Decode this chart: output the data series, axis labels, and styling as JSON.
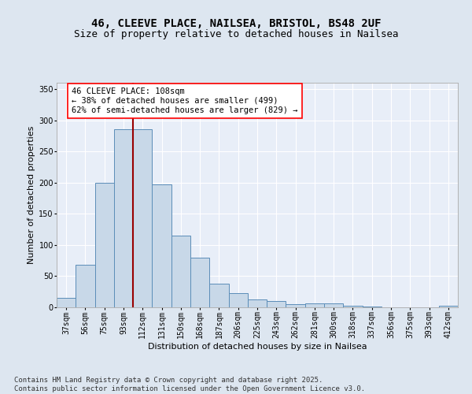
{
  "title_line1": "46, CLEEVE PLACE, NAILSEA, BRISTOL, BS48 2UF",
  "title_line2": "Size of property relative to detached houses in Nailsea",
  "xlabel": "Distribution of detached houses by size in Nailsea",
  "ylabel": "Number of detached properties",
  "categories": [
    "37sqm",
    "56sqm",
    "75sqm",
    "93sqm",
    "112sqm",
    "131sqm",
    "150sqm",
    "168sqm",
    "187sqm",
    "206sqm",
    "225sqm",
    "243sqm",
    "262sqm",
    "281sqm",
    "300sqm",
    "318sqm",
    "337sqm",
    "356sqm",
    "375sqm",
    "393sqm",
    "412sqm"
  ],
  "values": [
    15,
    68,
    200,
    285,
    285,
    197,
    115,
    80,
    38,
    23,
    13,
    10,
    5,
    6,
    6,
    3,
    1,
    0,
    0,
    0,
    2
  ],
  "bar_color": "#c8d8e8",
  "bar_edge_color": "#5b8db8",
  "vline_x_index": 4,
  "vline_color": "#990000",
  "annotation_text": "46 CLEEVE PLACE: 108sqm\n← 38% of detached houses are smaller (499)\n62% of semi-detached houses are larger (829) →",
  "annotation_box_color": "white",
  "annotation_box_edge_color": "red",
  "ylim": [
    0,
    360
  ],
  "yticks": [
    0,
    50,
    100,
    150,
    200,
    250,
    300,
    350
  ],
  "footer_text": "Contains HM Land Registry data © Crown copyright and database right 2025.\nContains public sector information licensed under the Open Government Licence v3.0.",
  "bg_color": "#dde6f0",
  "plot_bg_color": "#e8eef8",
  "grid_color": "white",
  "title_fontsize": 10,
  "subtitle_fontsize": 9,
  "axis_label_fontsize": 8,
  "tick_fontsize": 7,
  "annotation_fontsize": 7.5,
  "footer_fontsize": 6.5
}
